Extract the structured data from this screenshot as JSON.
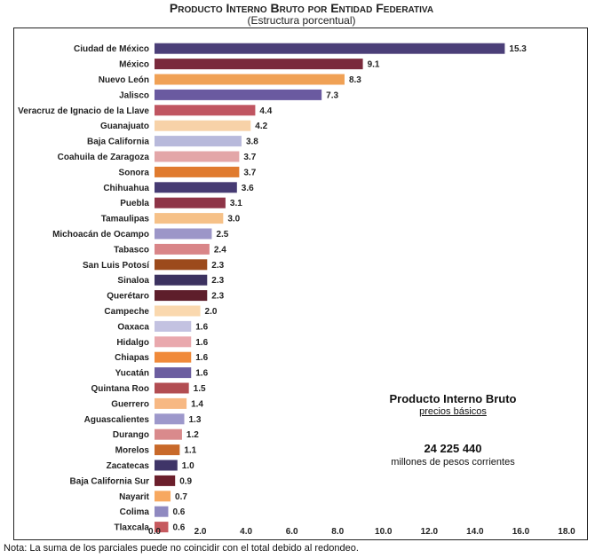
{
  "chart_data": {
    "type": "bar",
    "orientation": "horizontal",
    "title": "Producto Interno Bruto por Entidad Federativa",
    "subtitle": "(Estructura porcentual)",
    "xlim": [
      0,
      18
    ],
    "xticks": [
      "0.0",
      "2.0",
      "4.0",
      "6.0",
      "8.0",
      "10.0",
      "12.0",
      "14.0",
      "16.0",
      "18.0"
    ],
    "categories": [
      "Ciudad de México",
      "México",
      "Nuevo León",
      "Jalisco",
      "Veracruz de Ignacio de la Llave",
      "Guanajuato",
      "Baja California",
      "Coahuila de Zaragoza",
      "Sonora",
      "Chihuahua",
      "Puebla",
      "Tamaulipas",
      "Michoacán de Ocampo",
      "Tabasco",
      "San Luis Potosí",
      "Sinaloa",
      "Querétaro",
      "Campeche",
      "Oaxaca",
      "Hidalgo",
      "Chiapas",
      "Yucatán",
      "Quintana Roo",
      "Guerrero",
      "Aguascalientes",
      "Durango",
      "Morelos",
      "Zacatecas",
      "Baja California Sur",
      "Nayarit",
      "Colima",
      "Tlaxcala"
    ],
    "values": [
      15.3,
      9.1,
      8.3,
      7.3,
      4.4,
      4.2,
      3.8,
      3.7,
      3.7,
      3.6,
      3.1,
      3.0,
      2.5,
      2.4,
      2.3,
      2.3,
      2.3,
      2.0,
      1.6,
      1.6,
      1.6,
      1.6,
      1.5,
      1.4,
      1.3,
      1.2,
      1.1,
      1.0,
      0.9,
      0.7,
      0.6,
      0.6
    ],
    "value_labels": [
      "15.3",
      "9.1",
      "8.3",
      "7.3",
      "4.4",
      "4.2",
      "3.8",
      "3.7",
      "3.7",
      "3.6",
      "3.1",
      "3.0",
      "2.5",
      "2.4",
      "2.3",
      "2.3",
      "2.3",
      "2.0",
      "1.6",
      "1.6",
      "1.6",
      "1.6",
      "1.5",
      "1.4",
      "1.3",
      "1.2",
      "1.1",
      "1.0",
      "0.9",
      "0.7",
      "0.6",
      "0.6"
    ],
    "colors": [
      "#4b3f78",
      "#7a2a3c",
      "#f0a155",
      "#6a5aa0",
      "#c05561",
      "#f7d2a8",
      "#b8b9db",
      "#e3a6a8",
      "#e07b2f",
      "#463b73",
      "#8e3447",
      "#f6c188",
      "#9c96c8",
      "#d98588",
      "#9c4a1c",
      "#3c3260",
      "#5e1e2b",
      "#fad8ae",
      "#c3c2e1",
      "#e9a8ad",
      "#f08a3a",
      "#6c5ea0",
      "#b24d52",
      "#f7b883",
      "#9d98cb",
      "#d98a8c",
      "#c8692a",
      "#3f3568",
      "#6b1f2c",
      "#f7a860",
      "#8f89c0",
      "#c65a5f"
    ]
  },
  "info": {
    "title": "Producto Interno Bruto",
    "subtitle": "precios básicos",
    "total": "24 225 440",
    "units": "millones de pesos corrientes"
  },
  "note": "Nota: La suma de los parciales puede no coincidir con el total debido al redondeo."
}
